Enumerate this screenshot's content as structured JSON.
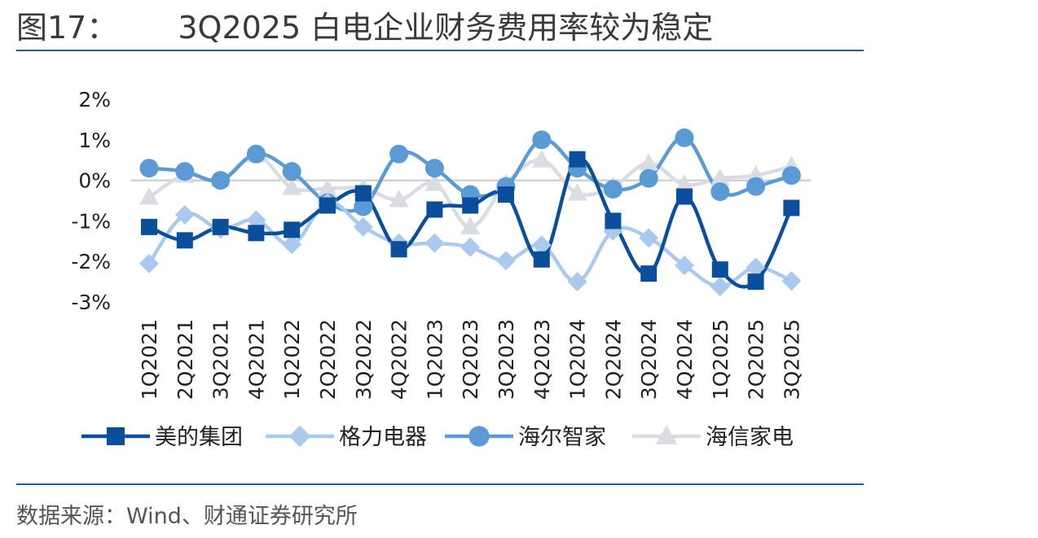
{
  "header": {
    "figure_label": "图17：",
    "title": "3Q2025 白电企业财务费用率较为稳定"
  },
  "source": "数据来源：Wind、财通证券研究所",
  "chart_data": {
    "type": "line",
    "title": "3Q2025 白电企业财务费用率较为稳定",
    "xlabel": "",
    "ylabel": "",
    "ylim": [
      -3,
      2
    ],
    "yticks": [
      "2%",
      "1%",
      "0%",
      "-1%",
      "-2%",
      "-3%"
    ],
    "categories": [
      "1Q2021",
      "2Q2021",
      "3Q2021",
      "4Q2021",
      "1Q2022",
      "2Q2022",
      "3Q2022",
      "4Q2022",
      "1Q2023",
      "2Q2023",
      "3Q2023",
      "4Q2023",
      "1Q2024",
      "2Q2024",
      "3Q2024",
      "4Q2024",
      "1Q2025",
      "2Q2025",
      "3Q2025"
    ],
    "legend_position": "bottom",
    "grid": false,
    "series": [
      {
        "name": "美的集团",
        "color": "#0b4f9c",
        "marker": "square",
        "values": [
          -1.15,
          -1.48,
          -1.15,
          -1.3,
          -1.22,
          -0.62,
          -0.32,
          -1.7,
          -0.72,
          -0.62,
          -0.35,
          -1.95,
          0.52,
          -1.0,
          -2.3,
          -0.4,
          -2.2,
          -2.5,
          -0.68
        ]
      },
      {
        "name": "格力电器",
        "color": "#a9c9ee",
        "marker": "diamond",
        "values": [
          -2.05,
          -0.85,
          -1.2,
          -0.98,
          -1.58,
          -0.55,
          -1.15,
          -1.55,
          -1.55,
          -1.65,
          -1.98,
          -1.6,
          -2.5,
          -1.25,
          -1.42,
          -2.1,
          -2.62,
          -2.15,
          -2.48
        ]
      },
      {
        "name": "海尔智家",
        "color": "#5b9bd5",
        "marker": "circle",
        "values": [
          0.3,
          0.22,
          0.0,
          0.65,
          0.22,
          -0.55,
          -0.65,
          0.65,
          0.3,
          -0.35,
          -0.15,
          1.0,
          0.3,
          -0.22,
          0.05,
          1.05,
          -0.28,
          -0.15,
          0.12
        ]
      },
      {
        "name": "海信家电",
        "color": "#d9dde3",
        "marker": "triangle",
        "values": [
          -0.42,
          0.12,
          0.02,
          0.62,
          -0.18,
          -0.2,
          -0.2,
          -0.48,
          -0.08,
          -1.15,
          -0.08,
          0.5,
          -0.32,
          -0.15,
          0.42,
          -0.1,
          0.05,
          0.12,
          0.35
        ]
      }
    ]
  }
}
